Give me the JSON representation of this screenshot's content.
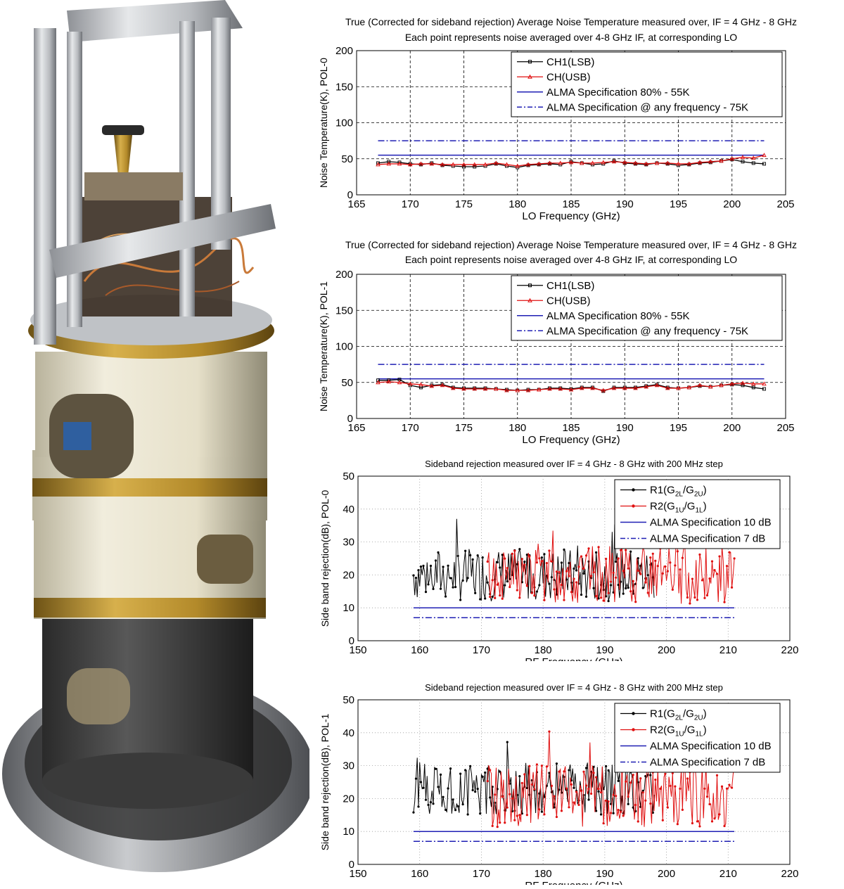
{
  "colors": {
    "ch1": "#000000",
    "ch2": "#e01010",
    "spec_solid": "#1f1fb4",
    "spec_dash": "#1f1fb4",
    "grid": "#000000"
  },
  "photo": {
    "description_icon": "receiver-cartridge-photo"
  },
  "chart_data": [
    {
      "id": "noise-pol0",
      "type": "line",
      "title": [
        "True (Corrected for sideband rejection) Average Noise Temperature measured over, IF = 4 GHz - 8 GHz",
        "Each point represents noise averaged over 4-8 GHz IF, at corresponding LO"
      ],
      "xlabel": "LO Frequency (GHz)",
      "ylabel": "Noise Temperature(K), POL-0",
      "xlim": [
        165,
        205
      ],
      "ylim": [
        0,
        200
      ],
      "xticks": [
        165,
        170,
        175,
        180,
        185,
        190,
        195,
        200,
        205
      ],
      "yticks": [
        0,
        50,
        100,
        150,
        200
      ],
      "grid": true,
      "legend_position": "top-right",
      "x": [
        167,
        168,
        169,
        170,
        171,
        172,
        173,
        174,
        175,
        176,
        177,
        178,
        179,
        180,
        181,
        182,
        183,
        184,
        185,
        186,
        187,
        188,
        189,
        190,
        191,
        192,
        193,
        194,
        195,
        196,
        197,
        198,
        199,
        200,
        201,
        202,
        203
      ],
      "series": [
        {
          "name": "CH1(LSB)",
          "marker": "square",
          "values": [
            44,
            46,
            45,
            43,
            42,
            44,
            41,
            40,
            39,
            39,
            40,
            43,
            40,
            38,
            41,
            42,
            43,
            42,
            46,
            44,
            42,
            43,
            47,
            44,
            43,
            42,
            44,
            43,
            41,
            42,
            44,
            45,
            47,
            49,
            46,
            44,
            43
          ]
        },
        {
          "name": "CH(USB)",
          "marker": "triangle",
          "values": [
            42,
            43,
            43,
            42,
            43,
            43,
            42,
            42,
            42,
            42,
            42,
            44,
            42,
            40,
            42,
            43,
            44,
            44,
            45,
            44,
            44,
            45,
            46,
            45,
            44,
            43,
            44,
            44,
            43,
            43,
            45,
            46,
            47,
            50,
            52,
            51,
            55
          ]
        }
      ],
      "spec_lines": [
        {
          "name": "ALMA Specification 80% - 55K",
          "value": 55,
          "style": "solid"
        },
        {
          "name": "ALMA Specification @ any frequency - 75K",
          "value": 75,
          "style": "dashdot"
        }
      ]
    },
    {
      "id": "noise-pol1",
      "type": "line",
      "title": [
        "True (Corrected for sideband rejection) Average Noise Temperature measured over, IF = 4 GHz - 8 GHz",
        "Each point represents noise averaged over 4-8 GHz IF, at corresponding LO"
      ],
      "xlabel": "LO Frequency (GHz)",
      "ylabel": "Noise Temperature(K), POL-1",
      "xlim": [
        165,
        205
      ],
      "ylim": [
        0,
        200
      ],
      "xticks": [
        165,
        170,
        175,
        180,
        185,
        190,
        195,
        200,
        205
      ],
      "yticks": [
        0,
        50,
        100,
        150,
        200
      ],
      "grid": true,
      "legend_position": "top-right",
      "x": [
        167,
        168,
        169,
        170,
        171,
        172,
        173,
        174,
        175,
        176,
        177,
        178,
        179,
        180,
        181,
        182,
        183,
        184,
        185,
        186,
        187,
        188,
        189,
        190,
        191,
        192,
        193,
        194,
        195,
        196,
        197,
        198,
        199,
        200,
        201,
        202,
        203
      ],
      "series": [
        {
          "name": "CH1(LSB)",
          "marker": "square",
          "values": [
            53,
            53,
            54,
            46,
            43,
            46,
            47,
            43,
            42,
            42,
            42,
            41,
            40,
            39,
            40,
            40,
            42,
            42,
            41,
            43,
            43,
            38,
            43,
            43,
            43,
            45,
            47,
            43,
            42,
            43,
            45,
            44,
            46,
            47,
            46,
            43,
            41
          ]
        },
        {
          "name": "CH(USB)",
          "marker": "triangle",
          "values": [
            50,
            51,
            50,
            48,
            47,
            45,
            46,
            42,
            41,
            41,
            41,
            41,
            39,
            39,
            39,
            40,
            41,
            41,
            40,
            42,
            42,
            39,
            42,
            42,
            42,
            44,
            46,
            42,
            42,
            43,
            46,
            44,
            46,
            48,
            49,
            48,
            48
          ]
        }
      ],
      "spec_lines": [
        {
          "name": "ALMA Specification 80% - 55K",
          "value": 55,
          "style": "solid"
        },
        {
          "name": "ALMA Specification @ any frequency - 75K",
          "value": 75,
          "style": "dashdot"
        }
      ]
    },
    {
      "id": "sbr-pol0",
      "type": "line",
      "title": [
        "Sideband rejection measured over IF = 4 GHz - 8 GHz with 200 MHz step"
      ],
      "xlabel": "RF Frequency (GHz)",
      "ylabel": "Side band rejection(dB), POL-0",
      "xlim": [
        150,
        220
      ],
      "ylim": [
        0,
        50
      ],
      "xticks": [
        150,
        160,
        170,
        180,
        190,
        200,
        210,
        220
      ],
      "yticks": [
        0,
        10,
        20,
        30,
        40,
        50
      ],
      "grid": true,
      "legend_position": "top-right",
      "series": [
        {
          "name": "R1(G2L/G2U)",
          "legend_main": "R1(G",
          "legend_parts": [
            "2L",
            "/G",
            "2U",
            ")"
          ],
          "marker": "dot",
          "range": [
            159,
            198
          ],
          "mean": 20,
          "amp": 10,
          "seed": 7
        },
        {
          "name": "R2(G1U/G1L)",
          "legend_main": "R2(G",
          "legend_parts": [
            "1U",
            "/G",
            "1L",
            ")"
          ],
          "marker": "dot",
          "range": [
            171,
            211
          ],
          "mean": 20,
          "amp": 11,
          "seed": 13
        }
      ],
      "spec_lines": [
        {
          "name": "ALMA Specification 10 dB",
          "value": 10,
          "style": "solid",
          "range": [
            159,
            211
          ]
        },
        {
          "name": "ALMA Specification 7 dB",
          "value": 7,
          "style": "dashdot",
          "range": [
            159,
            211
          ]
        }
      ]
    },
    {
      "id": "sbr-pol1",
      "type": "line",
      "title": [
        "Sideband rejection measured over IF = 4 GHz - 8 GHz with 200 MHz step"
      ],
      "xlabel": "RF Frequency (GHz)",
      "ylabel": "Side band rejection(dB), POL-1",
      "xlim": [
        150,
        220
      ],
      "ylim": [
        0,
        50
      ],
      "xticks": [
        150,
        160,
        170,
        180,
        190,
        200,
        210,
        220
      ],
      "yticks": [
        0,
        10,
        20,
        30,
        40,
        50
      ],
      "grid": true,
      "legend_position": "top-right",
      "series": [
        {
          "name": "R1(G2L/G2U)",
          "legend_main": "R1(G",
          "legend_parts": [
            "2L",
            "/G",
            "2U",
            ")"
          ],
          "marker": "dot",
          "range": [
            159,
            198
          ],
          "mean": 23,
          "amp": 10,
          "seed": 21
        },
        {
          "name": "R2(G1U/G1L)",
          "legend_main": "R2(G",
          "legend_parts": [
            "1U",
            "/G",
            "1L",
            ")"
          ],
          "marker": "dot",
          "range": [
            171,
            211
          ],
          "mean": 21,
          "amp": 12,
          "seed": 29
        }
      ],
      "spec_lines": [
        {
          "name": "ALMA Specification 10 dB",
          "value": 10,
          "style": "solid",
          "range": [
            159,
            211
          ]
        },
        {
          "name": "ALMA Specification 7 dB",
          "value": 7,
          "style": "dashdot",
          "range": [
            159,
            211
          ]
        }
      ]
    }
  ]
}
